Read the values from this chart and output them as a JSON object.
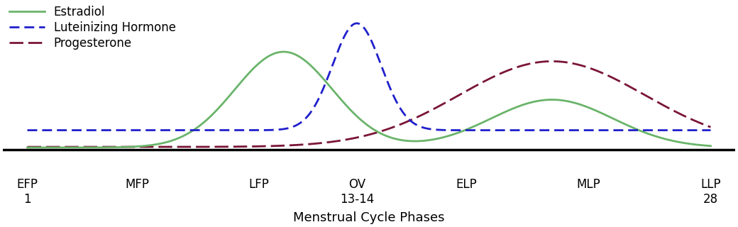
{
  "xlabel": "Menstrual Cycle Phases",
  "estradiol_color": "#6ab46a",
  "lh_color": "#2020cc",
  "prog_color": "#7a1535",
  "background_color": "#ffffff",
  "legend_fontsize": 12,
  "xlabel_fontsize": 13,
  "tick_fontsize": 12,
  "phase_positions": [
    0,
    4.5,
    9.5,
    13.5,
    18,
    23,
    28
  ],
  "phase_labels_top": [
    "EFP",
    "MFP",
    "LFP",
    "OV",
    "ELP",
    "MLP",
    "LLP"
  ],
  "phase_labels_bottom": [
    "1",
    "",
    "",
    "13-14",
    "",
    "",
    "28"
  ]
}
